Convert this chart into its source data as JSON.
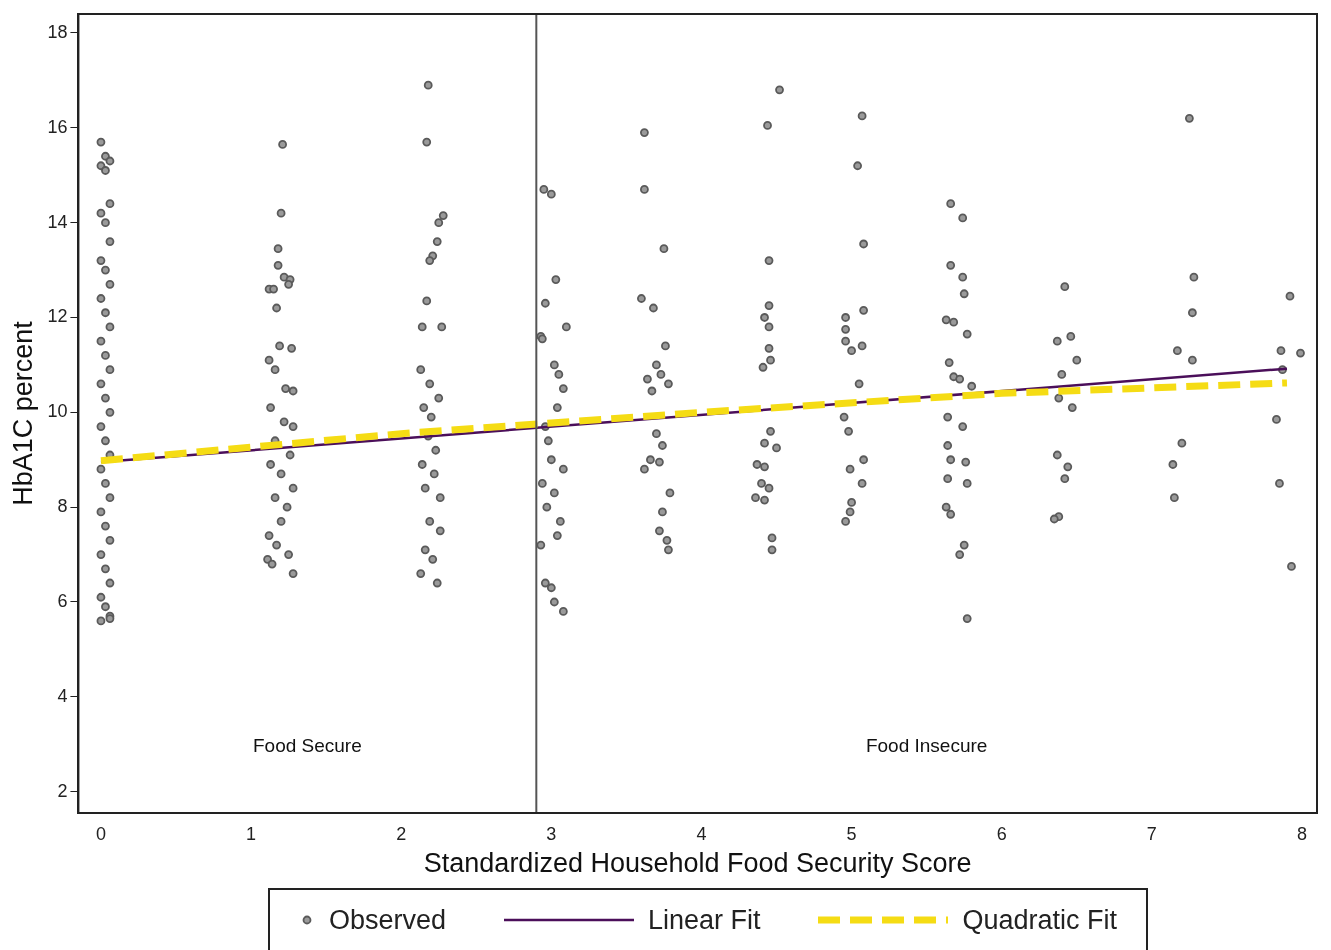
{
  "chart_data": {
    "type": "scatter",
    "xlabel": "Standardized Household Food Security Score",
    "ylabel": "HbA1C percent",
    "xlim": [
      -0.15,
      8.1
    ],
    "xticks": [
      0,
      1,
      2,
      3,
      4,
      5,
      6,
      7,
      8
    ],
    "ylim": [
      1.55,
      18.4
    ],
    "yticks": [
      2,
      4,
      6,
      8,
      10,
      12,
      14,
      16,
      18
    ],
    "grid": false,
    "legend": "bottom",
    "ref_lines": [
      {
        "axis": "x",
        "value": 2.9,
        "color": "#555555"
      }
    ],
    "annotations": [
      "Food Secure",
      "Food Insecure"
    ],
    "series": [
      {
        "name": "Observed",
        "type": "scatter",
        "marker": "circle",
        "color": "#5a5a5a",
        "x": [
          0,
          0.03,
          0.06,
          0,
          0.03,
          0.06,
          0,
          0.03,
          0.06,
          0,
          0.03,
          0.06,
          0,
          0.03,
          0.06,
          0,
          0.03,
          0.06,
          0,
          0.03,
          0.06,
          0,
          0.03,
          0.06,
          0,
          0.03,
          0.06,
          0,
          0.03,
          0.06,
          0,
          0.03,
          0.06,
          0,
          0.03,
          0.06,
          0,
          0.06,
          1.21,
          1.2,
          1.18,
          1.18,
          1.22,
          1.26,
          1.12,
          1.15,
          1.25,
          1.17,
          1.19,
          1.27,
          1.12,
          1.16,
          1.23,
          1.28,
          1.13,
          1.22,
          1.28,
          1.16,
          1.26,
          1.13,
          1.2,
          1.28,
          1.16,
          1.24,
          1.2,
          1.12,
          1.17,
          1.25,
          1.11,
          1.14,
          1.28,
          2.18,
          2.17,
          2.28,
          2.25,
          2.24,
          2.21,
          2.19,
          2.17,
          2.14,
          2.27,
          2.13,
          2.19,
          2.25,
          2.15,
          2.2,
          2.18,
          2.23,
          2.14,
          2.22,
          2.16,
          2.26,
          2.19,
          2.26,
          2.16,
          2.21,
          2.13,
          2.24,
          2.95,
          3.0,
          3.03,
          2.96,
          3.1,
          2.93,
          2.94,
          3.02,
          3.05,
          3.08,
          3.04,
          2.96,
          2.98,
          3.0,
          3.08,
          2.94,
          3.02,
          2.97,
          3.06,
          3.04,
          2.93,
          2.96,
          3.0,
          3.02,
          3.08,
          3.62,
          3.62,
          3.75,
          3.6,
          3.68,
          3.76,
          3.7,
          3.73,
          3.64,
          3.78,
          3.67,
          3.7,
          3.74,
          3.66,
          3.72,
          3.62,
          3.79,
          3.74,
          3.72,
          3.77,
          3.78,
          4.52,
          4.44,
          4.45,
          4.45,
          4.42,
          4.45,
          4.45,
          4.46,
          4.41,
          4.46,
          4.42,
          4.5,
          4.37,
          4.42,
          4.4,
          4.45,
          4.36,
          4.42,
          4.47,
          4.47,
          5.07,
          5.04,
          5.08,
          5.08,
          4.96,
          4.96,
          4.96,
          5.07,
          5.0,
          5.05,
          4.95,
          4.98,
          5.08,
          4.99,
          5.07,
          5.0,
          4.99,
          4.96,
          5.66,
          5.74,
          5.66,
          5.74,
          5.75,
          5.63,
          5.68,
          5.77,
          5.65,
          5.68,
          5.72,
          5.8,
          5.64,
          5.74,
          5.64,
          5.66,
          5.76,
          5.64,
          5.77,
          5.63,
          5.66,
          5.75,
          5.72,
          5.77,
          6.42,
          6.46,
          6.37,
          6.5,
          6.4,
          6.38,
          6.47,
          6.37,
          6.44,
          6.42,
          6.38,
          6.35,
          7.25,
          7.28,
          7.27,
          7.17,
          7.27,
          7.2,
          7.14,
          7.15,
          7.92,
          7.86,
          7.99,
          7.87,
          7.83,
          7.85,
          7.93
        ],
        "values": [
          15.7,
          15.4,
          15.3,
          15.2,
          15.1,
          14.4,
          14.2,
          14.0,
          13.6,
          13.2,
          13.0,
          12.7,
          12.4,
          12.1,
          11.8,
          11.5,
          11.2,
          10.9,
          10.6,
          10.3,
          10.0,
          9.7,
          9.4,
          9.1,
          8.8,
          8.5,
          8.2,
          7.9,
          7.6,
          7.3,
          7.0,
          6.7,
          6.4,
          6.1,
          5.9,
          5.7,
          5.6,
          5.65,
          15.65,
          14.2,
          13.45,
          13.1,
          12.85,
          12.8,
          12.6,
          12.6,
          12.7,
          12.2,
          11.4,
          11.35,
          11.1,
          10.9,
          10.5,
          10.45,
          10.1,
          9.8,
          9.7,
          9.4,
          9.1,
          8.9,
          8.7,
          8.4,
          8.2,
          8.0,
          7.7,
          7.4,
          7.2,
          7.0,
          6.9,
          6.8,
          6.6,
          16.9,
          15.7,
          14.15,
          14.0,
          13.6,
          13.3,
          13.2,
          12.35,
          11.8,
          11.8,
          10.9,
          10.6,
          10.3,
          10.1,
          9.9,
          9.5,
          9.2,
          8.9,
          8.7,
          8.4,
          8.2,
          7.7,
          7.5,
          7.1,
          6.9,
          6.6,
          6.4,
          14.7,
          14.6,
          12.8,
          12.3,
          11.8,
          11.6,
          11.55,
          11.0,
          10.8,
          10.5,
          10.1,
          9.7,
          9.4,
          9.0,
          8.8,
          8.5,
          8.3,
          8.0,
          7.7,
          7.4,
          7.2,
          6.4,
          6.3,
          6.0,
          5.8,
          15.9,
          14.7,
          13.45,
          12.4,
          12.2,
          11.4,
          11.0,
          10.8,
          10.7,
          10.6,
          10.45,
          9.55,
          9.3,
          9.0,
          8.95,
          8.8,
          8.3,
          7.9,
          7.5,
          7.3,
          7.1,
          16.8,
          16.05,
          13.2,
          12.25,
          12.0,
          11.8,
          11.35,
          11.1,
          10.95,
          9.6,
          9.35,
          9.25,
          8.9,
          8.85,
          8.5,
          8.4,
          8.2,
          8.15,
          7.35,
          7.1,
          16.25,
          15.2,
          13.55,
          12.15,
          12.0,
          11.75,
          11.5,
          11.4,
          11.3,
          10.6,
          9.9,
          9.6,
          9.0,
          8.8,
          8.5,
          8.1,
          7.9,
          7.7,
          14.4,
          14.1,
          13.1,
          12.85,
          12.5,
          11.95,
          11.9,
          11.65,
          11.05,
          10.75,
          10.7,
          10.55,
          9.9,
          9.7,
          9.3,
          9.0,
          8.95,
          8.6,
          8.5,
          8.0,
          7.85,
          7.2,
          7.0,
          5.65,
          12.65,
          11.6,
          11.5,
          11.1,
          10.8,
          10.3,
          10.1,
          9.1,
          8.85,
          8.6,
          7.8,
          7.75,
          16.2,
          12.85,
          12.1,
          11.3,
          11.1,
          9.35,
          8.9,
          8.2,
          12.45,
          11.3,
          11.25,
          10.9,
          9.85,
          8.5,
          6.75
        ]
      },
      {
        "name": "Linear Fit",
        "type": "line",
        "line_style": "solid",
        "color": "#4b0f5a",
        "x": [
          0,
          7.9
        ],
        "values": [
          8.95,
          10.92
        ]
      },
      {
        "name": "Quadratic Fit",
        "type": "line",
        "line_style": "dashed",
        "color": "#f5dc14",
        "x": [
          0,
          2,
          4,
          6,
          7.9
        ],
        "values": [
          8.98,
          9.55,
          10.0,
          10.4,
          10.62
        ]
      }
    ]
  }
}
